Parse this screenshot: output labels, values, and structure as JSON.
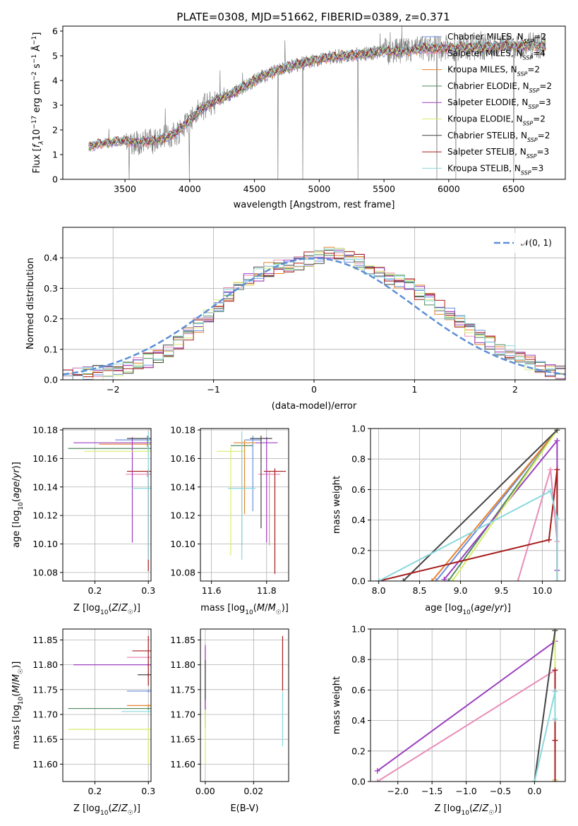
{
  "title": "PLATE=0308, MJD=51662, FIBERID=0389, z=0.371",
  "colors": {
    "Chabrier MILES": "#6a8fdc",
    "Salpeter MILES": "#e98db8",
    "Kroupa MILES": "#e8822c",
    "Chabrier ELODIE": "#4e8a5e",
    "Salpeter ELODIE": "#9b3fbf",
    "Kroupa ELODIE": "#d7ec6a",
    "Chabrier STELIB": "#444444",
    "Salpeter STELIB": "#a61c1c",
    "Kroupa STELIB": "#8ad8dc",
    "data": "#808080",
    "normal": "#5b8fd6"
  },
  "chart_data": [
    {
      "type": "line",
      "panel": "spectrum",
      "xlabel": "wavelength [Angstrom, rest frame]",
      "ylabel": "Flux [f_λ 10^-17 erg cm^-2 s^-1 Å^-1]",
      "xlim": [
        3020,
        6900
      ],
      "ylim": [
        0,
        6.2
      ],
      "xticks": [
        3500,
        4000,
        4500,
        5000,
        5500,
        6000,
        6500
      ],
      "yticks": [
        0,
        1,
        2,
        3,
        4,
        5,
        6
      ],
      "legend_position": "right",
      "legend": [
        {
          "name": "Chabrier MILES, N_SSP=2",
          "key": "Chabrier MILES"
        },
        {
          "name": "Salpeter MILES, N_SSP=4",
          "key": "Salpeter MILES"
        },
        {
          "name": "Kroupa MILES, N_SSP=2",
          "key": "Kroupa MILES"
        },
        {
          "name": "Chabrier ELODIE, N_SSP=2",
          "key": "Chabrier ELODIE"
        },
        {
          "name": "Salpeter ELODIE, N_SSP=3",
          "key": "Salpeter ELODIE"
        },
        {
          "name": "Kroupa ELODIE, N_SSP=2",
          "key": "Kroupa ELODIE"
        },
        {
          "name": "Chabrier STELIB, N_SSP=2",
          "key": "Chabrier STELIB"
        },
        {
          "name": "Salpeter STELIB, N_SSP=3",
          "key": "Salpeter STELIB"
        },
        {
          "name": "Kroupa STELIB, N_SSP=3",
          "key": "Kroupa STELIB"
        }
      ],
      "model_continuum": {
        "x": [
          3220,
          3300,
          3400,
          3500,
          3600,
          3700,
          3800,
          3900,
          4000,
          4100,
          4200,
          4300,
          4400,
          4500,
          4600,
          4700,
          4800,
          4900,
          5000,
          5100,
          5200,
          5300,
          5400,
          5500,
          5600,
          5700,
          5800,
          5900,
          6000,
          6100,
          6200,
          6300,
          6400,
          6500,
          6600,
          6750
        ],
        "y": [
          1.3,
          1.45,
          1.5,
          1.55,
          1.5,
          1.55,
          1.65,
          1.9,
          2.4,
          2.9,
          3.2,
          3.4,
          3.7,
          4.0,
          4.25,
          4.45,
          4.6,
          4.75,
          4.85,
          4.95,
          5.0,
          5.05,
          5.1,
          5.2,
          5.15,
          5.2,
          5.3,
          5.3,
          5.3,
          5.35,
          5.35,
          5.35,
          5.4,
          5.4,
          5.4,
          5.4
        ]
      }
    },
    {
      "type": "line",
      "panel": "residual histogram",
      "xlabel": "(data-model)/error",
      "ylabel": "Normed distribution",
      "xlim": [
        -2.5,
        2.5
      ],
      "ylim": [
        0,
        0.5
      ],
      "xticks": [
        -2,
        -1,
        0,
        1,
        2
      ],
      "yticks": [
        0.0,
        0.1,
        0.2,
        0.3,
        0.4
      ],
      "legend_position": "top-right",
      "normal_label": "𝒩(0, 1)",
      "bin_width": 0.1,
      "histogram_envelope": {
        "x": [
          -2.5,
          -2.2,
          -2.0,
          -1.8,
          -1.6,
          -1.4,
          -1.2,
          -1.0,
          -0.8,
          -0.6,
          -0.4,
          -0.2,
          0.0,
          0.2,
          0.4,
          0.6,
          0.8,
          1.0,
          1.2,
          1.4,
          1.6,
          1.8,
          2.0,
          2.2,
          2.5
        ],
        "y": [
          0.01,
          0.02,
          0.03,
          0.045,
          0.07,
          0.11,
          0.16,
          0.23,
          0.3,
          0.34,
          0.37,
          0.38,
          0.4,
          0.42,
          0.4,
          0.35,
          0.33,
          0.3,
          0.25,
          0.2,
          0.15,
          0.11,
          0.08,
          0.05,
          0.02
        ]
      }
    },
    {
      "type": "scatter",
      "panel": "age vs Z",
      "xlabel": "Z [log10(Z/Z☉)]",
      "ylabel": "age [log10(age/yr)]",
      "xlim": [
        0.14,
        0.305
      ],
      "ylim": [
        10.074,
        10.181
      ],
      "xticks": [
        0.2,
        0.3
      ],
      "yticks": [
        10.08,
        10.1,
        10.12,
        10.14,
        10.16,
        10.18
      ],
      "points": [
        {
          "key": "Chabrier MILES",
          "x": 0.298,
          "y": 10.173,
          "xerr": 0.06,
          "yerr": [
            0.003,
            0.003
          ]
        },
        {
          "key": "Salpeter MILES",
          "x": 0.298,
          "y": 10.149,
          "xerr": 0.04,
          "yerr": [
            0.002,
            0.002
          ]
        },
        {
          "key": "Kroupa MILES",
          "x": 0.298,
          "y": 10.17,
          "xerr": 0.09,
          "yerr": [
            0.002,
            0.002
          ]
        },
        {
          "key": "Chabrier ELODIE",
          "x": 0.3,
          "y": 10.167,
          "xerr": 0.15,
          "yerr": [
            0.002,
            0.002
          ]
        },
        {
          "key": "Salpeter ELODIE",
          "x": 0.27,
          "y": 10.171,
          "xerr": 0.11,
          "yerr": [
            0.07,
            0.004
          ]
        },
        {
          "key": "Kroupa ELODIE",
          "x": 0.3,
          "y": 10.165,
          "xerr": 0.12,
          "yerr": [
            0.002,
            0.002
          ]
        },
        {
          "key": "Chabrier STELIB",
          "x": 0.3,
          "y": 10.174,
          "xerr": 0.04,
          "yerr": [
            0.002,
            0.002
          ]
        },
        {
          "key": "Salpeter STELIB",
          "x": 0.3,
          "y": 10.151,
          "xerr": 0.04,
          "yerr": [
            0.07,
            0.002
          ]
        },
        {
          "key": "Kroupa STELIB",
          "x": 0.3,
          "y": 10.139,
          "xerr": 0.03,
          "yerr": [
            0.05,
            0.04
          ]
        }
      ]
    },
    {
      "type": "scatter",
      "panel": "age vs mass",
      "xlabel": "mass [log10(M/M☉)]",
      "ylabel": "",
      "xlim": [
        11.56,
        11.88
      ],
      "ylim": [
        10.074,
        10.181
      ],
      "xticks": [
        11.6,
        11.8
      ],
      "yticks": [
        10.08,
        10.1,
        10.12,
        10.14,
        10.16,
        10.18
      ],
      "points": [
        {
          "key": "Chabrier MILES",
          "x": 11.75,
          "y": 10.173,
          "xerr": 0.03,
          "yerr": [
            0.05,
            0.003
          ]
        },
        {
          "key": "Salpeter MILES",
          "x": 11.81,
          "y": 10.149,
          "xerr": 0.04,
          "yerr": [
            0.05,
            0.002
          ]
        },
        {
          "key": "Kroupa MILES",
          "x": 11.72,
          "y": 10.171,
          "xerr": 0.04,
          "yerr": [
            0.05,
            0.002
          ]
        },
        {
          "key": "Chabrier ELODIE",
          "x": 11.71,
          "y": 10.169,
          "xerr": 0.04,
          "yerr": [
            0.07,
            0.004
          ]
        },
        {
          "key": "Salpeter ELODIE",
          "x": 11.8,
          "y": 10.171,
          "xerr": 0.04,
          "yerr": [
            0.07,
            0.004
          ]
        },
        {
          "key": "Kroupa ELODIE",
          "x": 11.67,
          "y": 10.165,
          "xerr": 0.05,
          "yerr": [
            0.073,
            0.003
          ]
        },
        {
          "key": "Chabrier STELIB",
          "x": 11.78,
          "y": 10.174,
          "xerr": 0.04,
          "yerr": [
            0.063,
            0.002
          ]
        },
        {
          "key": "Salpeter STELIB",
          "x": 11.83,
          "y": 10.151,
          "xerr": 0.04,
          "yerr": [
            0.072,
            0.002
          ]
        },
        {
          "key": "Kroupa STELIB",
          "x": 11.71,
          "y": 10.139,
          "xerr": 0.05,
          "yerr": [
            0.05,
            0.04
          ]
        }
      ]
    },
    {
      "type": "line",
      "panel": "mass weight vs age",
      "xlabel": "age [log10(age/yr)]",
      "ylabel": "mass weight",
      "xlim": [
        7.9,
        10.28
      ],
      "ylim": [
        0,
        1
      ],
      "xticks": [
        8.0,
        8.5,
        9.0,
        9.5,
        10.0
      ],
      "yticks": [
        0.0,
        0.2,
        0.4,
        0.6,
        0.8,
        1.0
      ],
      "series": [
        {
          "key": "Chabrier MILES",
          "x": [
            8.7,
            10.18
          ],
          "y": [
            0.0,
            0.99
          ]
        },
        {
          "key": "Salpeter MILES",
          "x": [
            9.7,
            10.1,
            10.18
          ],
          "y": [
            0.0,
            0.73,
            0.26
          ]
        },
        {
          "key": "Kroupa MILES",
          "x": [
            8.65,
            10.18
          ],
          "y": [
            0.0,
            0.99
          ]
        },
        {
          "key": "Chabrier ELODIE",
          "x": [
            8.85,
            10.18
          ],
          "y": [
            0.0,
            0.99
          ]
        },
        {
          "key": "Salpeter ELODIE",
          "x": [
            8.8,
            10.18,
            10.18
          ],
          "y": [
            0.01,
            0.92,
            0.07
          ]
        },
        {
          "key": "Kroupa ELODIE",
          "x": [
            8.9,
            10.18
          ],
          "y": [
            0.0,
            0.99
          ]
        },
        {
          "key": "Chabrier STELIB",
          "x": [
            8.3,
            10.18
          ],
          "y": [
            0.0,
            0.99
          ]
        },
        {
          "key": "Salpeter STELIB",
          "x": [
            8.0,
            10.08,
            10.18,
            10.18
          ],
          "y": [
            0.0,
            0.27,
            0.73,
            0.0
          ]
        },
        {
          "key": "Kroupa STELIB",
          "x": [
            8.0,
            10.1,
            10.18,
            10.18
          ],
          "y": [
            0.0,
            0.59,
            0.41,
            0.0
          ]
        }
      ]
    },
    {
      "type": "scatter",
      "panel": "mass vs Z",
      "xlabel": "Z [log10(Z/Z☉)]",
      "ylabel": "mass [log10(M/M☉)]",
      "xlim": [
        0.14,
        0.305
      ],
      "ylim": [
        11.565,
        11.872
      ],
      "xticks": [
        0.2,
        0.3
      ],
      "yticks": [
        11.6,
        11.65,
        11.7,
        11.75,
        11.8,
        11.85
      ],
      "points": [
        {
          "key": "Chabrier MILES",
          "x": 0.3,
          "y": 11.747,
          "xerr": 0.04,
          "yerr": [
            0.003,
            0.003
          ]
        },
        {
          "key": "Salpeter MILES",
          "x": 0.3,
          "y": 11.815,
          "xerr": 0.04,
          "yerr": [
            0.003,
            0.003
          ]
        },
        {
          "key": "Kroupa MILES",
          "x": 0.3,
          "y": 11.718,
          "xerr": 0.04,
          "yerr": [
            0.003,
            0.003
          ]
        },
        {
          "key": "Chabrier ELODIE",
          "x": 0.3,
          "y": 11.712,
          "xerr": 0.15,
          "yerr": [
            0.003,
            0.003
          ]
        },
        {
          "key": "Salpeter ELODIE",
          "x": 0.3,
          "y": 11.8,
          "xerr": 0.14,
          "yerr": [
            0.003,
            0.003
          ]
        },
        {
          "key": "Kroupa ELODIE",
          "x": 0.3,
          "y": 11.67,
          "xerr": 0.15,
          "yerr": [
            0.07,
            0.003
          ]
        },
        {
          "key": "Chabrier STELIB",
          "x": 0.3,
          "y": 11.78,
          "xerr": 0.02,
          "yerr": [
            0.003,
            0.003
          ]
        },
        {
          "key": "Salpeter STELIB",
          "x": 0.3,
          "y": 11.828,
          "xerr": 0.03,
          "yerr": [
            0.07,
            0.03
          ]
        },
        {
          "key": "Kroupa STELIB",
          "x": 0.3,
          "y": 11.706,
          "xerr": 0.05,
          "yerr": [
            0.003,
            0.003
          ]
        }
      ]
    },
    {
      "type": "scatter",
      "panel": "mass vs E(B-V)",
      "xlabel": "E(B-V)",
      "ylabel": "",
      "xlim": [
        -0.002,
        0.0345
      ],
      "ylim": [
        11.565,
        11.872
      ],
      "xticks": [
        0.0,
        0.02
      ],
      "yticks": [
        11.6,
        11.65,
        11.7,
        11.75,
        11.8,
        11.85
      ],
      "points": [
        {
          "key": "Chabrier MILES",
          "x": 0.0,
          "y": 11.747,
          "yerr": [
            0.04,
            0.03
          ]
        },
        {
          "key": "Salpeter MILES",
          "x": 0.0,
          "y": 11.815,
          "yerr": [
            0.05,
            0.02
          ]
        },
        {
          "key": "Kroupa MILES",
          "x": 0.0,
          "y": 11.718,
          "yerr": [
            0.04,
            0.03
          ]
        },
        {
          "key": "Chabrier ELODIE",
          "x": 0.0,
          "y": 11.712,
          "yerr": [
            0.04,
            0.05
          ]
        },
        {
          "key": "Salpeter ELODIE",
          "x": 0.0,
          "y": 11.8,
          "yerr": [
            0.1,
            0.04
          ]
        },
        {
          "key": "Kroupa ELODIE",
          "x": 0.0,
          "y": 11.67,
          "yerr": [
            0.07,
            0.04
          ]
        },
        {
          "key": "Chabrier STELIB",
          "x": 0.0,
          "y": 11.78,
          "yerr": [
            0.05,
            0.03
          ]
        },
        {
          "key": "Salpeter STELIB",
          "x": 0.032,
          "y": 11.828,
          "yerr": [
            0.08,
            0.03
          ]
        },
        {
          "key": "Kroupa STELIB",
          "x": 0.032,
          "y": 11.706,
          "yerr": [
            0.07,
            0.04
          ]
        }
      ]
    },
    {
      "type": "line",
      "panel": "mass weight vs Z",
      "xlabel": "Z [log10(Z/Z☉)]",
      "ylabel": "mass weight",
      "xlim": [
        -2.4,
        0.45
      ],
      "ylim": [
        0,
        1
      ],
      "xticks": [
        -2.0,
        -1.5,
        -1.0,
        -0.5,
        0.0
      ],
      "yticks": [
        0.0,
        0.2,
        0.4,
        0.6,
        0.8,
        1.0
      ],
      "series": [
        {
          "key": "Chabrier MILES",
          "x": [
            0.3,
            0.3
          ],
          "y": [
            0.01,
            0.99
          ]
        },
        {
          "key": "Salpeter MILES",
          "x": [
            -2.3,
            0.3
          ],
          "y": [
            0.0,
            0.73
          ]
        },
        {
          "key": "Kroupa MILES",
          "x": [
            0.3,
            0.3
          ],
          "y": [
            0.01,
            0.99
          ]
        },
        {
          "key": "Chabrier ELODIE",
          "x": [
            0.3,
            0.3
          ],
          "y": [
            0.01,
            0.99
          ]
        },
        {
          "key": "Salpeter ELODIE",
          "x": [
            -2.3,
            0.3
          ],
          "y": [
            0.07,
            0.92
          ]
        },
        {
          "key": "Kroupa ELODIE",
          "x": [
            0.3,
            0.3
          ],
          "y": [
            0.01,
            0.99
          ]
        },
        {
          "key": "Chabrier STELIB",
          "x": [
            0.0,
            0.3
          ],
          "y": [
            0.0,
            0.99
          ]
        },
        {
          "key": "Salpeter STELIB",
          "x": [
            0.3,
            0.3,
            0.3
          ],
          "y": [
            0.0,
            0.73,
            0.27
          ]
        },
        {
          "key": "Kroupa STELIB",
          "x": [
            0.0,
            0.3,
            0.3
          ],
          "y": [
            0.0,
            0.59,
            0.41
          ]
        }
      ]
    }
  ]
}
